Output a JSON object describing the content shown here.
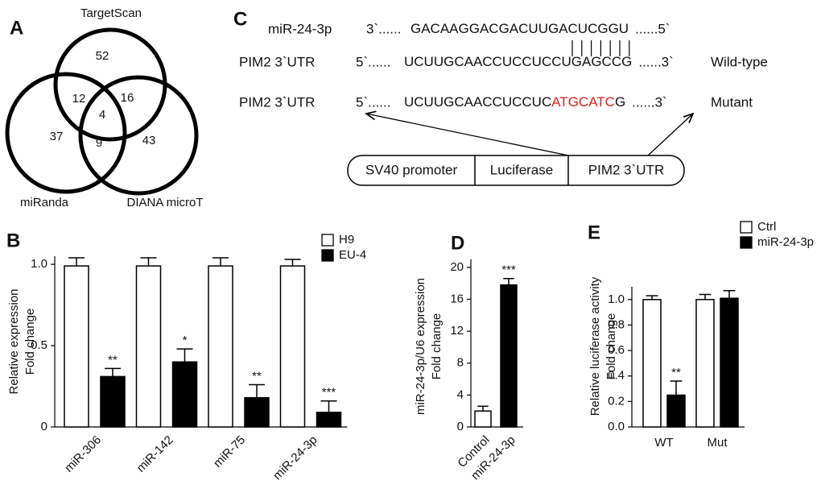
{
  "venn": {
    "panel": "A",
    "sets": [
      "TargetScan",
      "miRanda",
      "DIANA microT"
    ],
    "regions": [
      52,
      12,
      16,
      4,
      37,
      9,
      43
    ]
  },
  "sequence_diagram": {
    "panel": "C",
    "rows": [
      {
        "name": "miR-24-3p",
        "end5": "3`......",
        "seq": "GACAAGGACGACUUGACUCGGU",
        "end3": "......5`"
      },
      {
        "name": "PIM2  3`UTR",
        "end5": "5`......",
        "seq": "UCUUGCAACCUCCUCCUGAGCCG",
        "end3": "......3`",
        "tag": "Wild-type"
      },
      {
        "name": "PIM2  3`UTR",
        "end5": "5`......",
        "seq": "UCUUGCAACCUCCUC",
        "mutation": "ATGCATC",
        "seq_end": "G",
        "end3": "......3`",
        "tag": "Mutant"
      }
    ],
    "construct": [
      "SV40 promoter",
      "Luciferase",
      "PIM2  3`UTR"
    ]
  },
  "chart_data": [
    {
      "type": "bar",
      "panel": "B",
      "ylabel": [
        "Relative expression",
        "Fold change"
      ],
      "categories": [
        "miR-306",
        "miR-142",
        "miR-75",
        "miR-24-3p"
      ],
      "series": [
        {
          "name": "H9",
          "color": "#ffffff",
          "values": [
            0.99,
            0.99,
            0.99,
            0.99
          ],
          "errors": [
            0.05,
            0.05,
            0.05,
            0.04
          ]
        },
        {
          "name": "EU-4",
          "color": "#000000",
          "values": [
            0.31,
            0.4,
            0.18,
            0.09
          ],
          "errors": [
            0.05,
            0.08,
            0.08,
            0.07
          ],
          "annotations": [
            "**",
            "*",
            "**",
            "***"
          ]
        }
      ],
      "ylim": [
        0,
        1.05
      ],
      "yticks": [
        0,
        {
          "value": 0.5,
          "label": "0.5"
        },
        {
          "value": 1,
          "label": "1.0"
        }
      ],
      "legend": "top-right"
    },
    {
      "type": "bar",
      "panel": "D",
      "ylabel": [
        "miR-24-3p/U6 expression",
        "Fold change"
      ],
      "categories": [
        "Control",
        "miR-24-3p"
      ],
      "series": [
        {
          "colors": [
            "#ffffff",
            "#000000"
          ],
          "values": [
            2.0,
            17.8
          ],
          "errors": [
            0.6,
            0.8
          ],
          "annotations": [
            null,
            "***"
          ]
        }
      ],
      "ylim": [
        0,
        21
      ],
      "yticks": [
        0,
        4,
        8,
        12,
        16,
        20
      ]
    },
    {
      "type": "bar",
      "panel": "E",
      "ylabel": [
        "Relative luciferase activity",
        "Fold change"
      ],
      "categories": [
        "WT",
        "Mut"
      ],
      "series": [
        {
          "name": "Ctrl",
          "color": "#ffffff",
          "values": [
            1.0,
            1.0
          ],
          "errors": [
            0.03,
            0.04
          ]
        },
        {
          "name": "miR-24-3p",
          "color": "#000000",
          "values": [
            0.25,
            1.01
          ],
          "errors": [
            0.11,
            0.06
          ],
          "annotations": [
            "**",
            null
          ]
        }
      ],
      "ylim": [
        0,
        1.1
      ],
      "yticks": [
        {
          "value": 0,
          "label": "0.0"
        },
        0.2,
        0.4,
        0.6,
        0.8,
        {
          "value": 1,
          "label": "1.0"
        }
      ],
      "legend": "top-right"
    }
  ]
}
